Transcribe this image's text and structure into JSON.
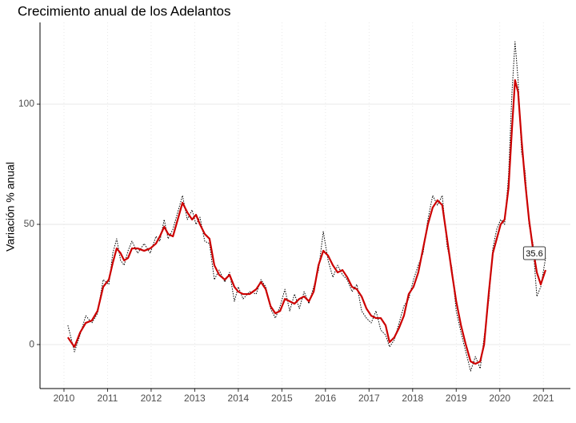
{
  "chart_data": {
    "type": "line",
    "title": "Crecimiento anual de los Adelantos",
    "y_label": "Variación % anual",
    "annotation": "35.6",
    "x": [
      2010.09,
      2010.24,
      2010.37,
      2010.5,
      2010.64,
      2010.77,
      2010.9,
      2011.03,
      2011.12,
      2011.21,
      2011.3,
      2011.38,
      2011.47,
      2011.56,
      2011.69,
      2011.84,
      2011.98,
      2012.11,
      2012.2,
      2012.3,
      2012.39,
      2012.5,
      2012.61,
      2012.72,
      2012.83,
      2012.94,
      2013.03,
      2013.12,
      2013.23,
      2013.34,
      2013.45,
      2013.56,
      2013.69,
      2013.8,
      2013.91,
      2014.0,
      2014.11,
      2014.26,
      2014.41,
      2014.52,
      2014.63,
      2014.74,
      2014.85,
      2014.96,
      2015.07,
      2015.18,
      2015.29,
      2015.4,
      2015.51,
      2015.62,
      2015.73,
      2015.84,
      2015.95,
      2016.06,
      2016.17,
      2016.28,
      2016.39,
      2016.5,
      2016.61,
      2016.72,
      2016.83,
      2016.94,
      2017.05,
      2017.16,
      2017.27,
      2017.38,
      2017.47,
      2017.58,
      2017.69,
      2017.8,
      2017.91,
      2018.02,
      2018.13,
      2018.24,
      2018.35,
      2018.46,
      2018.57,
      2018.68,
      2018.79,
      2018.9,
      2019.0,
      2019.11,
      2019.22,
      2019.33,
      2019.44,
      2019.55,
      2019.64,
      2019.75,
      2019.84,
      2019.93,
      2020.02,
      2020.11,
      2020.2,
      2020.28,
      2020.35,
      2020.42,
      2020.5,
      2020.58,
      2020.67,
      2020.76,
      2020.85,
      2020.94,
      2021.05
    ],
    "series": [
      {
        "color": "#000000",
        "linestyle": "dotted",
        "width": 1,
        "values": [
          8,
          -3,
          4,
          12,
          9,
          13,
          27,
          25,
          38,
          44,
          35,
          33,
          39,
          43,
          38,
          42,
          38,
          45,
          43,
          52,
          44,
          48,
          55,
          62,
          52,
          56,
          50,
          53,
          43,
          42,
          27,
          31,
          26,
          30,
          18,
          24,
          19,
          22,
          21,
          27,
          24,
          15,
          11,
          16,
          23,
          14,
          21,
          15,
          22,
          17,
          24,
          31,
          47,
          35,
          28,
          33,
          29,
          27,
          22,
          25,
          14,
          11,
          9,
          14,
          6,
          4,
          -1,
          2,
          9,
          16,
          19,
          27,
          33,
          38,
          52,
          62,
          58,
          62,
          41,
          32,
          14,
          5,
          -3,
          -11,
          -5,
          -10,
          3,
          19,
          40,
          48,
          52,
          50,
          70,
          105,
          126,
          110,
          80,
          72,
          50,
          42,
          20,
          24,
          36
        ]
      },
      {
        "color": "#cc0000",
        "linestyle": "solid",
        "width": 2.2,
        "values": [
          3,
          -1,
          5,
          9,
          10,
          14,
          24,
          27,
          34,
          40,
          38,
          35,
          36,
          40,
          40,
          39,
          40,
          42,
          45,
          49,
          46,
          45,
          52,
          59,
          55,
          52,
          54,
          50,
          46,
          44,
          33,
          29,
          27,
          29,
          24,
          22,
          21,
          21,
          23,
          26,
          23,
          16,
          13,
          14,
          19,
          18,
          17,
          19,
          20,
          18,
          22,
          33,
          39,
          37,
          33,
          30,
          31,
          28,
          24,
          23,
          20,
          15,
          12,
          11,
          11,
          8,
          1,
          3,
          7,
          12,
          21,
          24,
          30,
          40,
          50,
          57,
          60,
          58,
          44,
          30,
          18,
          8,
          0,
          -7,
          -8,
          -7,
          0,
          22,
          38,
          44,
          50,
          52,
          65,
          90,
          110,
          105,
          85,
          68,
          52,
          40,
          30,
          25,
          31
        ]
      }
    ],
    "xlim": [
      2009.45,
      2021.62
    ],
    "xticks": [
      2010,
      2011,
      2012,
      2013,
      2014,
      2015,
      2016,
      2017,
      2018,
      2019,
      2020,
      2021
    ],
    "ylim": [
      -18.3,
      134
    ],
    "yticks": [
      0,
      50,
      100
    ],
    "grid": true
  }
}
